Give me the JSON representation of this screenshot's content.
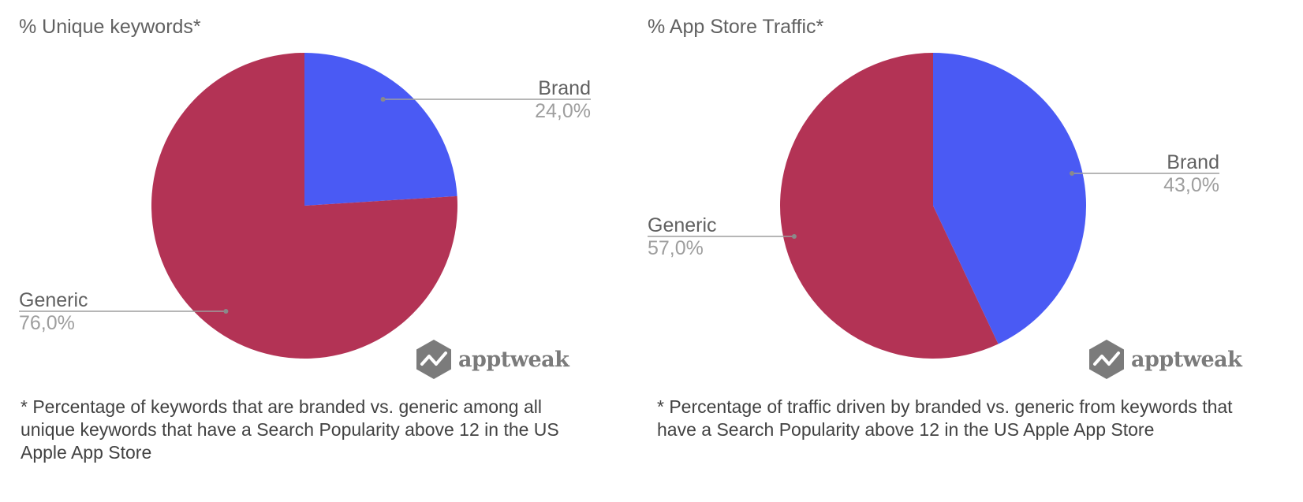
{
  "colors": {
    "brand": "#4a5af4",
    "generic": "#b33355",
    "label": "#616161",
    "value": "#9e9e9e",
    "leader": "#9e9e9e",
    "logo": "#7b7b7b"
  },
  "brand_logo": {
    "text": "apptweak",
    "icon": "apptweak-hexagon-icon"
  },
  "chart_data": [
    {
      "type": "pie",
      "title": "% Unique keywords*",
      "slices": [
        {
          "label": "Brand",
          "value": 24.0,
          "display": "24,0%"
        },
        {
          "label": "Generic",
          "value": 76.0,
          "display": "76,0%"
        }
      ],
      "legend": "none",
      "footnote": "* Percentage of keywords that are branded vs. generic among all unique keywords that have a Search Popularity above 12 in the US Apple App Store"
    },
    {
      "type": "pie",
      "title": "% App Store Traffic*",
      "slices": [
        {
          "label": "Brand",
          "value": 43.0,
          "display": "43,0%"
        },
        {
          "label": "Generic",
          "value": 57.0,
          "display": "57,0%"
        }
      ],
      "legend": "none",
      "footnote": "* Percentage of traffic driven by branded vs. generic from keywords that have a Search Popularity above 12 in the US Apple App Store"
    }
  ]
}
